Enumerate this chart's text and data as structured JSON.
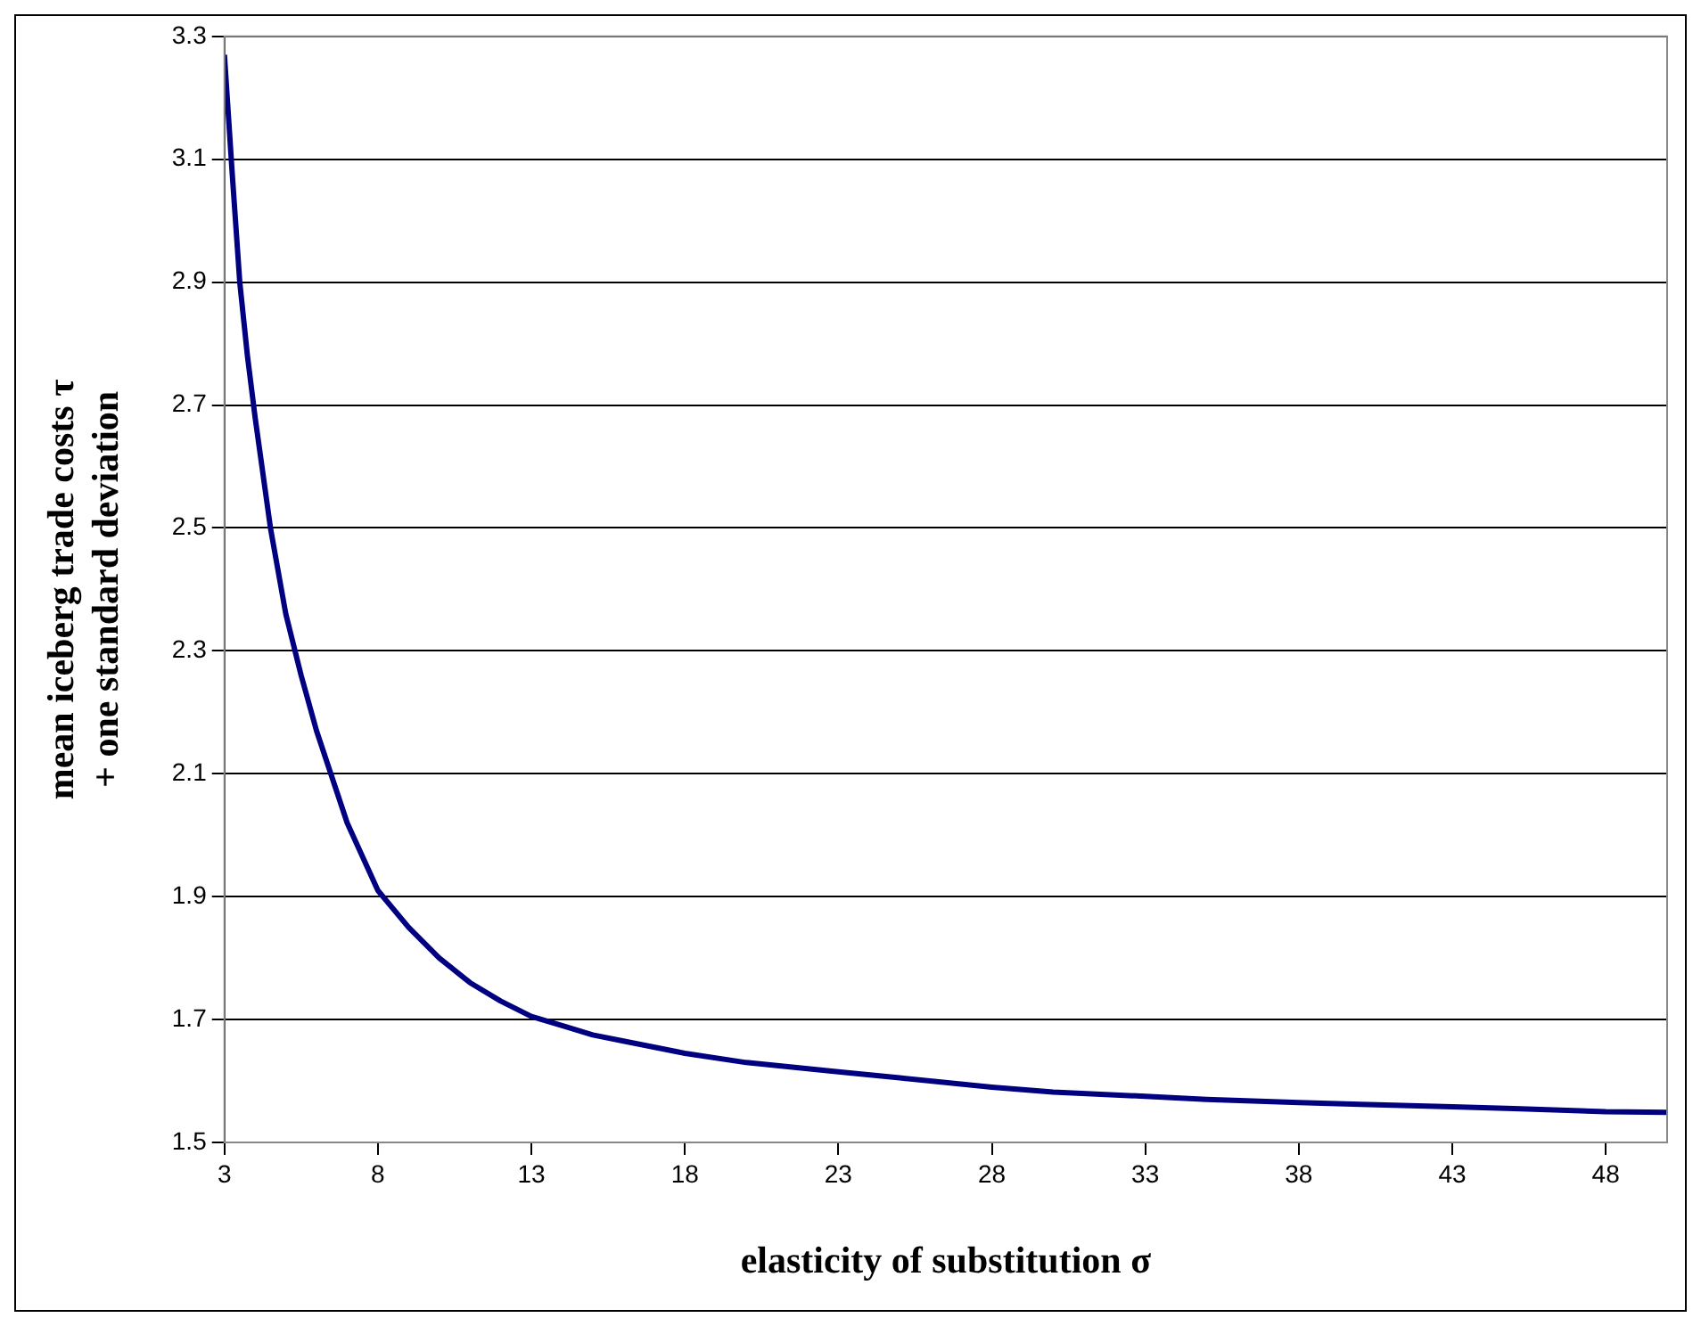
{
  "chart_data": {
    "type": "line",
    "xlabel": "elasticity of substitution σ",
    "ylabel": "mean iceberg trade costs τ\n+ one standard deviation",
    "series": [
      {
        "color": "#000080",
        "x": [
          3,
          3.25,
          3.5,
          3.75,
          4,
          4.5,
          5,
          5.5,
          6,
          7,
          8,
          9,
          10,
          11,
          12,
          13,
          14,
          15,
          16,
          18,
          20,
          23,
          25,
          28,
          30,
          33,
          35,
          38,
          40,
          43,
          45,
          48,
          50
        ],
        "values": [
          3.27,
          3.08,
          2.9,
          2.78,
          2.68,
          2.5,
          2.36,
          2.26,
          2.17,
          2.02,
          1.91,
          1.85,
          1.8,
          1.76,
          1.73,
          1.705,
          1.69,
          1.675,
          1.665,
          1.645,
          1.63,
          1.615,
          1.605,
          1.59,
          1.582,
          1.575,
          1.57,
          1.565,
          1.562,
          1.558,
          1.555,
          1.55,
          1.549
        ]
      }
    ],
    "xlim": [
      3,
      50
    ],
    "xticks": [
      3,
      8,
      13,
      18,
      23,
      28,
      33,
      38,
      43,
      48
    ],
    "ylim": [
      1.5,
      3.3
    ],
    "yticks": [
      1.5,
      1.7,
      1.9,
      2.1,
      2.3,
      2.5,
      2.7,
      2.9,
      3.1,
      3.3
    ],
    "grid": "y",
    "legend": false,
    "marker": "none",
    "line_style": "solid"
  }
}
